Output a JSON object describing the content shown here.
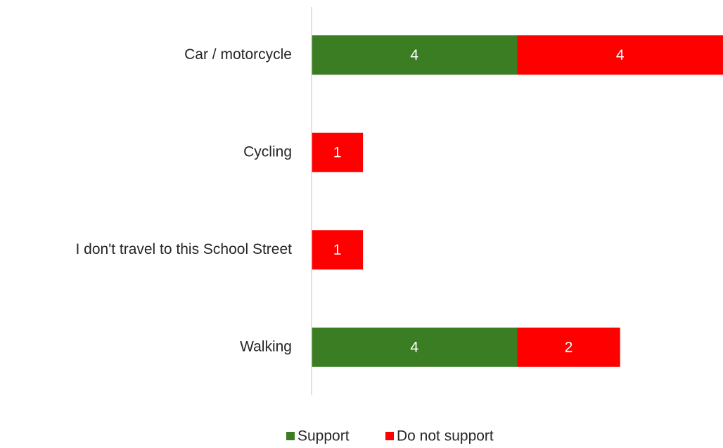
{
  "chart_data": {
    "type": "stacked-bar",
    "orientation": "horizontal",
    "categories": [
      "Car / motorcycle",
      "Cycling",
      "I don't travel to this School Street",
      "Walking"
    ],
    "series": [
      {
        "name": "Support",
        "color": "#3a7d22",
        "values": [
          4,
          0,
          0,
          4
        ]
      },
      {
        "name": "Do not support",
        "color": "#ff0000",
        "values": [
          4,
          1,
          1,
          2
        ]
      }
    ],
    "xlim": [
      0,
      8
    ],
    "legend": "bottom"
  }
}
